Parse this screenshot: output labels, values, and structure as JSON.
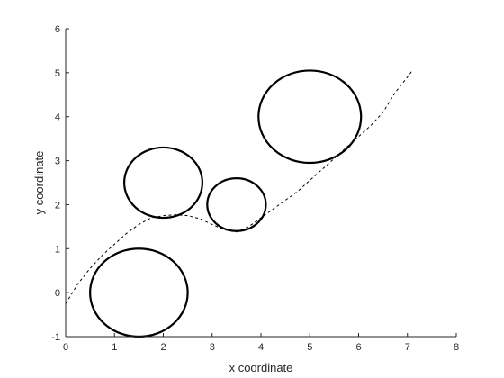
{
  "chart_data": {
    "type": "line",
    "title": "",
    "xlabel": "x coordinate",
    "ylabel": "y coordinate",
    "xlim": [
      0,
      8
    ],
    "ylim": [
      -1,
      6
    ],
    "xticks": [
      "0",
      "1",
      "2",
      "3",
      "4",
      "5",
      "6",
      "7",
      "8"
    ],
    "yticks": [
      "-1",
      "0",
      "1",
      "2",
      "3",
      "4",
      "5",
      "6"
    ],
    "grid": false,
    "legend": "none",
    "circles": [
      {
        "cx": 1.5,
        "cy": 0.0,
        "r": 1.0
      },
      {
        "cx": 2.0,
        "cy": 2.5,
        "r": 0.8
      },
      {
        "cx": 3.5,
        "cy": 2.0,
        "r": 0.6
      },
      {
        "cx": 5.0,
        "cy": 4.0,
        "r": 1.05
      }
    ],
    "path": {
      "style": "dashed",
      "x": [
        0.0,
        0.25,
        0.5,
        0.75,
        1.0,
        1.25,
        1.5,
        1.75,
        2.0,
        2.25,
        2.5,
        2.75,
        3.0,
        3.25,
        3.5,
        3.75,
        4.0,
        4.25,
        4.5,
        4.75,
        5.0,
        5.25,
        5.5,
        5.75,
        6.0,
        6.25,
        6.5,
        6.75,
        7.0,
        7.1
      ],
      "y": [
        -0.25,
        0.2,
        0.55,
        0.85,
        1.1,
        1.35,
        1.55,
        1.7,
        1.75,
        1.77,
        1.75,
        1.68,
        1.55,
        1.43,
        1.38,
        1.5,
        1.7,
        1.9,
        2.1,
        2.3,
        2.55,
        2.8,
        3.05,
        3.3,
        3.55,
        3.8,
        4.1,
        4.55,
        4.9,
        5.05
      ]
    },
    "colors": {
      "circle": "#000000",
      "path": "#000000",
      "axis": "#262626"
    }
  }
}
